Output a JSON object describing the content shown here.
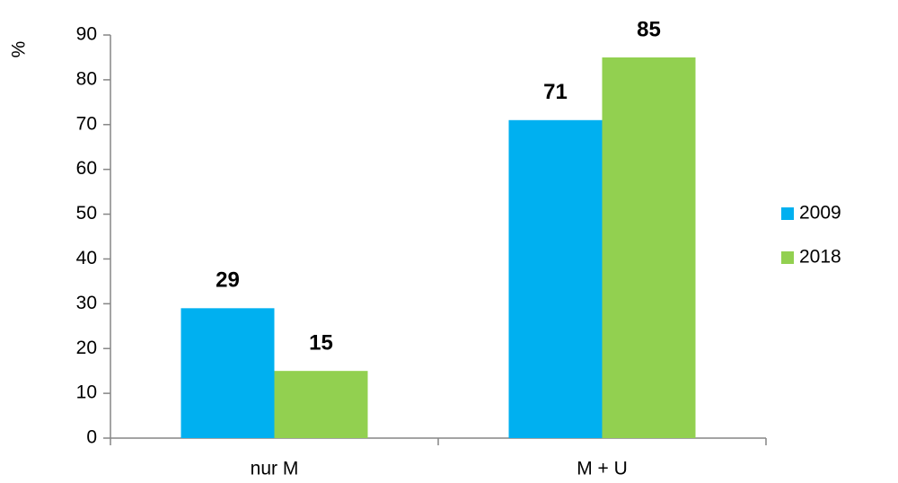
{
  "chart_data": {
    "type": "bar",
    "y_label": "%",
    "categories": [
      "nur M",
      "M + U"
    ],
    "series": [
      {
        "name": "2009",
        "color": "#00b0f0",
        "values": [
          29,
          71
        ]
      },
      {
        "name": "2018",
        "color": "#92d050",
        "values": [
          15,
          85
        ]
      }
    ],
    "ylim": [
      0,
      90
    ],
    "yticks": [
      0,
      10,
      20,
      30,
      40,
      50,
      60,
      70,
      80,
      90
    ],
    "legend": "right",
    "grid": false
  }
}
